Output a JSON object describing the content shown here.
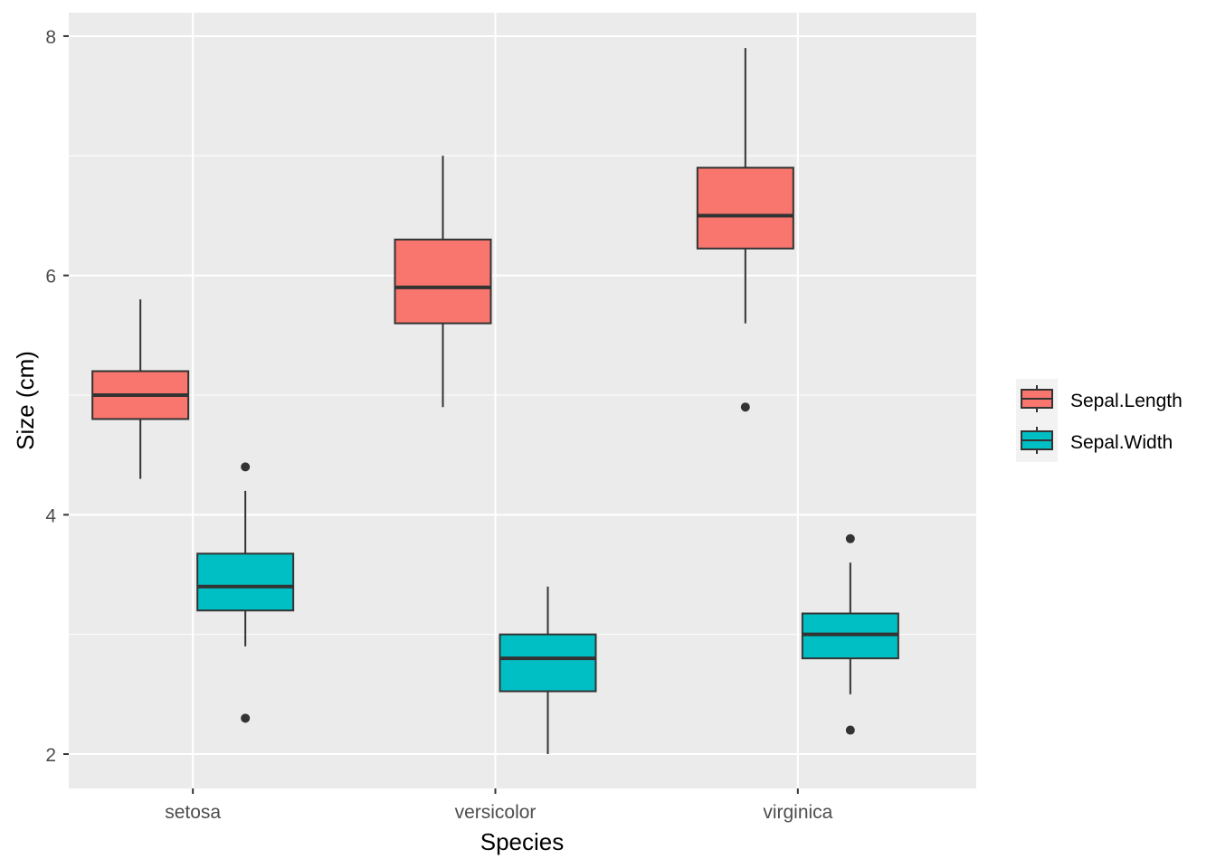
{
  "chart_data": {
    "type": "boxplot",
    "title": "",
    "xlabel": "Species",
    "ylabel": "Size (cm)",
    "categories": [
      "setosa",
      "versicolor",
      "virginica"
    ],
    "ylim": [
      1.713,
      8.196
    ],
    "yticks": [
      2,
      4,
      6,
      8
    ],
    "grid": true,
    "legend_position": "right",
    "series": [
      {
        "name": "Sepal.Length",
        "color": "#F8766D",
        "boxes": [
          {
            "lower": 4.3,
            "q1": 4.8,
            "median": 5.0,
            "q3": 5.2,
            "upper": 5.8,
            "outliers": []
          },
          {
            "lower": 4.9,
            "q1": 5.6,
            "median": 5.9,
            "q3": 6.3,
            "upper": 7.0,
            "outliers": []
          },
          {
            "lower": 5.6,
            "q1": 6.225,
            "median": 6.5,
            "q3": 6.9,
            "upper": 7.9,
            "outliers": [
              4.9
            ]
          }
        ]
      },
      {
        "name": "Sepal.Width",
        "color": "#00BFC4",
        "boxes": [
          {
            "lower": 2.9,
            "q1": 3.2,
            "median": 3.4,
            "q3": 3.675,
            "upper": 4.2,
            "outliers": [
              4.4,
              2.3
            ]
          },
          {
            "lower": 2.0,
            "q1": 2.525,
            "median": 2.8,
            "q3": 3.0,
            "upper": 3.4,
            "outliers": []
          },
          {
            "lower": 2.5,
            "q1": 2.8,
            "median": 3.0,
            "q3": 3.175,
            "upper": 3.6,
            "outliers": [
              3.8,
              2.2
            ]
          }
        ]
      }
    ]
  }
}
